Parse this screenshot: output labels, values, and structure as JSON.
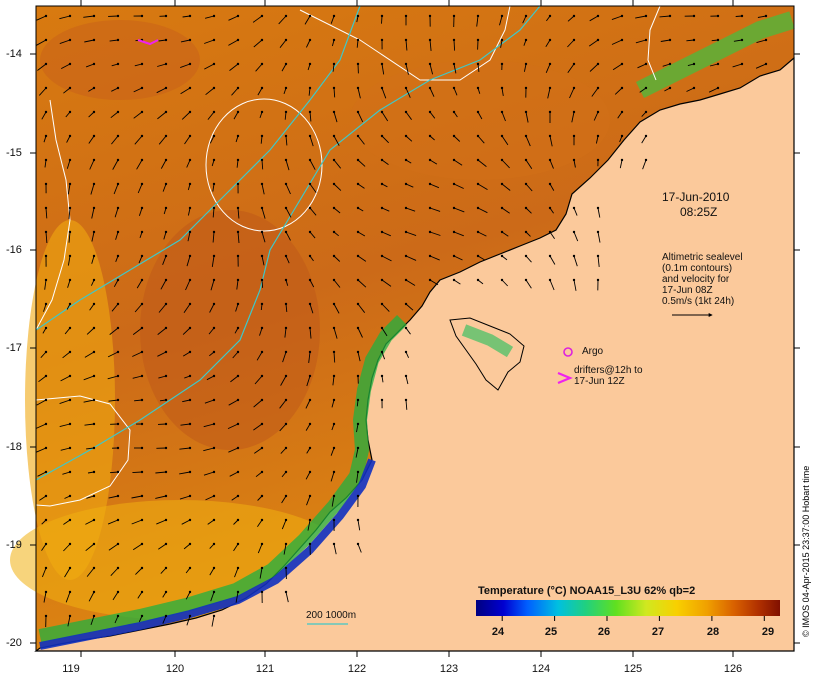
{
  "map": {
    "date": "17-Jun-2010",
    "time": "08:25Z",
    "legend_lines": [
      "Altimetric sealevel",
      "(0.1m contours)",
      "and velocity for",
      "17-Jun 08Z",
      "0.5m/s (1kt 24h)"
    ],
    "argo_label": "Argo",
    "drifter_lines": [
      "drifters@12h to",
      "17-Jun 12Z"
    ],
    "isobath_label": "200  1000m",
    "credit": "© IMOS 04-Apr-2015 23:37:00 Hobart time"
  },
  "axes": {
    "lon_ticks": [
      "119",
      "120",
      "121",
      "122",
      "123",
      "124",
      "125",
      "126"
    ],
    "lat_ticks": [
      "-14",
      "-15",
      "-16",
      "-17",
      "-18",
      "-19",
      "-20"
    ]
  },
  "colorbar": {
    "title": "Temperature (°C) NOAA15_L3U 62% qb=2",
    "ticks": [
      "24",
      "25",
      "26",
      "27",
      "28",
      "29"
    ],
    "range": [
      23.5,
      29.3
    ]
  },
  "colors": {
    "land": "#fbc99b",
    "coast": "#000000",
    "contour": "#ffffff",
    "isobath": "#3fc8c8",
    "argo": "#dd22dd",
    "drifter": "#ee22ee"
  }
}
